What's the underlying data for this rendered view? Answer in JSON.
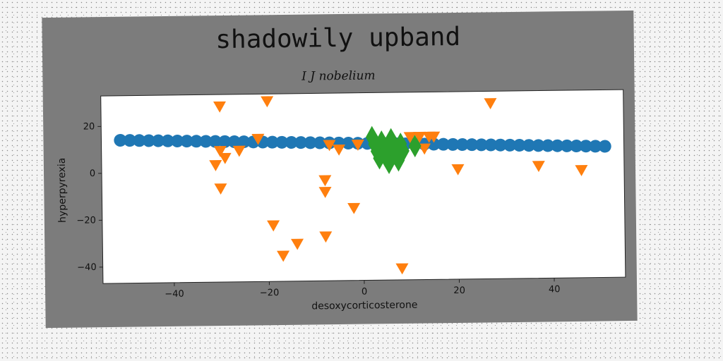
{
  "chart_data": {
    "type": "scatter",
    "title": "shadowily upband",
    "subtitle": "I J nobelium",
    "xlabel": "desoxycorticosterone",
    "ylabel": "hyperpyrexia",
    "xlim": [
      -55,
      55
    ],
    "ylim": [
      -47,
      33
    ],
    "xticks": [
      -40,
      -20,
      0,
      20,
      40
    ],
    "yticks": [
      -40,
      -20,
      0,
      20
    ],
    "grid": false,
    "series": [
      {
        "marker": "circle",
        "color": "#1f77b4",
        "x": [
          -51,
          -49,
          -47,
          -45,
          -43,
          -41,
          -39,
          -37,
          -35,
          -33,
          -31,
          -29,
          -27,
          -25,
          -23,
          -21,
          -19,
          -17,
          -15,
          -13,
          -11,
          -9,
          -7,
          -5,
          -3,
          -1,
          1,
          3,
          5,
          7,
          9,
          11,
          13,
          15,
          17,
          19,
          21,
          23,
          25,
          27,
          29,
          31,
          33,
          35,
          37,
          39,
          41,
          43,
          45,
          47,
          49,
          51
        ],
        "y": [
          14.0,
          13.9,
          13.8,
          13.7,
          13.6,
          13.5,
          13.4,
          13.3,
          13.2,
          13.1,
          13.0,
          12.9,
          12.8,
          12.7,
          12.6,
          12.5,
          12.4,
          12.3,
          12.2,
          12.1,
          12.0,
          11.9,
          11.8,
          11.7,
          11.6,
          11.5,
          11.4,
          11.3,
          11.2,
          11.1,
          11.0,
          10.9,
          10.8,
          10.7,
          10.6,
          10.5,
          10.4,
          10.3,
          10.2,
          10.1,
          10.0,
          9.9,
          9.8,
          9.7,
          9.6,
          9.5,
          9.4,
          9.3,
          9.2,
          9.1,
          9.0,
          8.9
        ]
      },
      {
        "marker": "triangle-down",
        "color": "#ff7f0e",
        "x": [
          -30,
          -20,
          -22,
          -30,
          -29,
          -31,
          -26,
          -30,
          -7,
          -8,
          -8,
          -19,
          -14,
          -17,
          -8,
          -2,
          -5,
          -1,
          8,
          10,
          12,
          14,
          15,
          13,
          20,
          27,
          37,
          46
        ],
        "y": [
          28,
          30,
          14,
          9,
          6,
          3,
          9,
          -7,
          11,
          -4,
          -9,
          -23,
          -31,
          -36,
          -28,
          -16,
          9,
          11,
          -42,
          14,
          14,
          14,
          14,
          9,
          0,
          28,
          1,
          -1
        ]
      },
      {
        "marker": "diamond",
        "color": "#2ca02c",
        "x": [
          2,
          2.5,
          3,
          3.5,
          4,
          4.5,
          5,
          5.5,
          6,
          6.5,
          7,
          7.5,
          8,
          8.5,
          3,
          4,
          5,
          6,
          7,
          11
        ],
        "y": [
          14,
          11,
          8,
          5,
          12,
          9,
          6,
          3,
          13,
          10,
          7,
          4,
          11,
          8,
          10,
          12,
          9,
          11,
          7,
          10
        ]
      }
    ]
  }
}
